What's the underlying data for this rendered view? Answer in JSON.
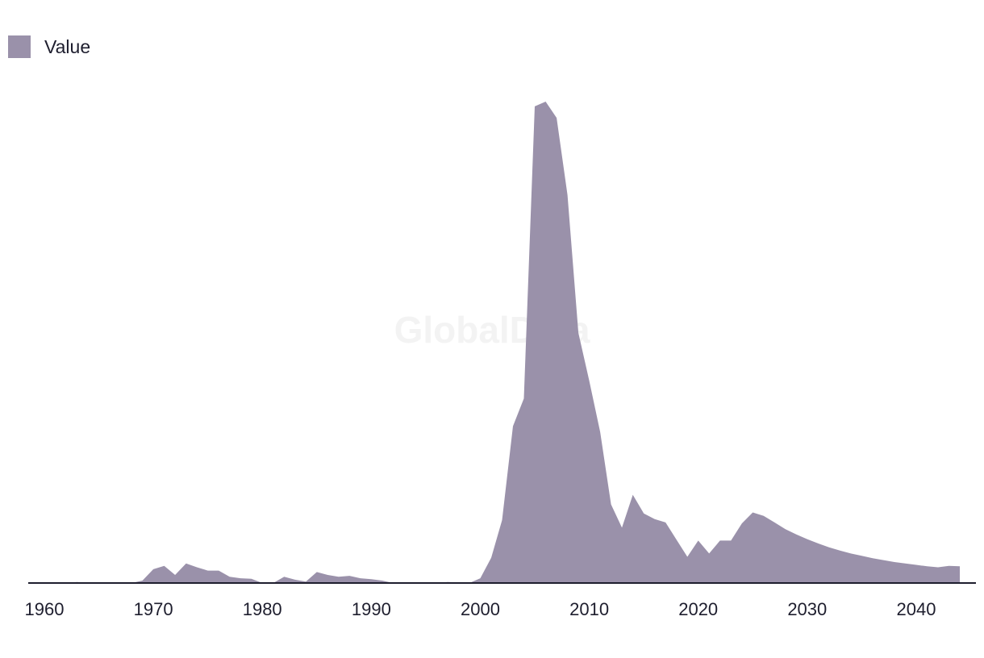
{
  "watermark": "GlobalData",
  "chart_data": {
    "type": "area",
    "title": "",
    "xlabel": "",
    "ylabel": "",
    "legend": {
      "position": "top-left"
    },
    "grid": false,
    "xlim": [
      1960,
      2045
    ],
    "ylim": [
      0,
      100
    ],
    "x_ticks": [
      1960,
      1970,
      1980,
      1990,
      2000,
      2010,
      2020,
      2030,
      2040
    ],
    "x": [
      1960,
      1961,
      1962,
      1963,
      1964,
      1965,
      1966,
      1967,
      1968,
      1969,
      1970,
      1971,
      1972,
      1973,
      1974,
      1975,
      1976,
      1977,
      1978,
      1979,
      1980,
      1981,
      1982,
      1983,
      1984,
      1985,
      1986,
      1987,
      1988,
      1989,
      1990,
      1991,
      1992,
      1993,
      1994,
      1995,
      1996,
      1997,
      1998,
      1999,
      2000,
      2001,
      2002,
      2003,
      2004,
      2005,
      2006,
      2007,
      2008,
      2009,
      2010,
      2011,
      2012,
      2013,
      2014,
      2015,
      2016,
      2017,
      2018,
      2019,
      2020,
      2021,
      2022,
      2023,
      2024,
      2025,
      2026,
      2027,
      2028,
      2029,
      2030,
      2031,
      2032,
      2033,
      2034,
      2035,
      2036,
      2037,
      2038,
      2039,
      2040,
      2041,
      2042,
      2043,
      2044
    ],
    "series": [
      {
        "name": "Value",
        "color": "#9a91aa",
        "values": [
          0,
          0,
          0,
          0.2,
          0,
          0,
          0,
          0,
          0,
          0.5,
          2.9,
          3.6,
          1.7,
          4.1,
          3.3,
          2.6,
          2.6,
          1.3,
          1,
          0.9,
          0,
          0,
          1.3,
          0.7,
          0.3,
          2.3,
          1.7,
          1.3,
          1.5,
          1,
          0.8,
          0.5,
          0,
          0,
          0,
          0,
          0,
          0.2,
          0.1,
          0,
          1,
          5.3,
          13.2,
          32.9,
          38.7,
          100,
          101,
          97.6,
          81.4,
          52.5,
          42.4,
          31.7,
          16.5,
          11.6,
          18.5,
          14.6,
          13.4,
          12.7,
          9.1,
          5.5,
          8.9,
          6.2,
          8.9,
          8.9,
          12.5,
          14.8,
          14.1,
          12.7,
          11.3,
          10.2,
          9.2,
          8.3,
          7.5,
          6.8,
          6.2,
          5.7,
          5.2,
          4.8,
          4.4,
          4.1,
          3.8,
          3.5,
          3.3,
          3.6,
          3.5
        ]
      }
    ]
  }
}
